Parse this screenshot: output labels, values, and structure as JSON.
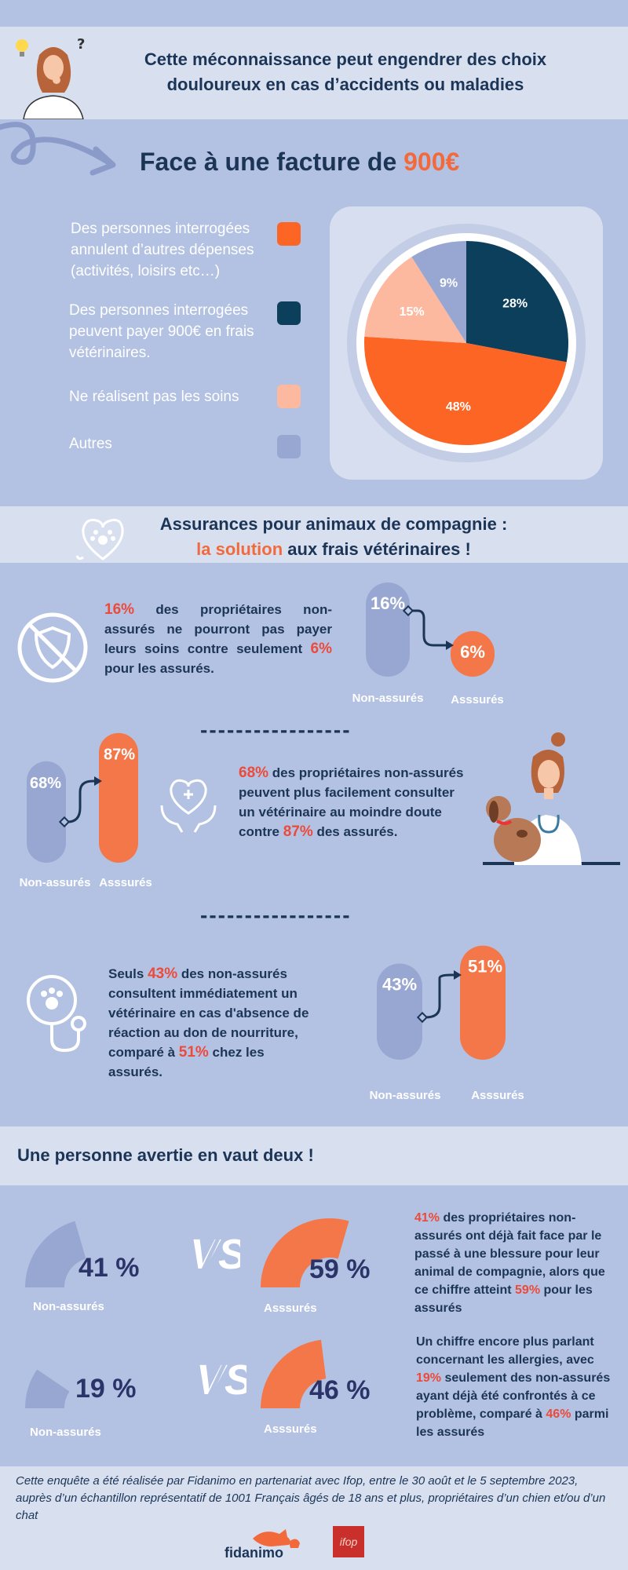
{
  "header": {
    "line1": "Cette méconnaissance peut engendrer des choix",
    "line2": "douloureux en cas d’accidents ou maladies"
  },
  "invoice": {
    "title_prefix": "Face à une facture de ",
    "title_amount": "900€"
  },
  "legend": [
    {
      "label": "Des personnes interrogées annulent d’autres dépenses (activités, loisirs etc…)",
      "color": "#fd6524"
    },
    {
      "label": "Des personnes interrogées peuvent payer 900€ en frais vétérinaires.",
      "color": "#0c3f5c"
    },
    {
      "label": "Ne réalisent pas les soins",
      "color": "#fdb9a0"
    },
    {
      "label": "Autres",
      "color": "#98a7d1"
    }
  ],
  "chart_data": {
    "type": "pie",
    "categories": [
      "Des personnes interrogées annulent d’autres dépenses (activités, loisirs etc…)",
      "Des personnes interrogées peuvent payer 900€ en frais vétérinaires.",
      "Ne réalisent pas les soins",
      "Autres"
    ],
    "values": [
      48,
      28,
      15,
      9
    ],
    "data_labels": [
      "48%",
      "28%",
      "15%",
      "9%"
    ],
    "colors": [
      "#fd6524",
      "#0c3f5c",
      "#fdb9a0",
      "#98a7d1"
    ]
  },
  "insurance": {
    "title_line1": "Assurances pour animaux de compagnie :",
    "title_highlight": "la solution",
    "title_rest": " aux frais vétérinaires !"
  },
  "stat1": {
    "pct_a": "16%",
    "text_a": " des propriétaires non- assurés ne pourront pas payer leurs soins contre seulement ",
    "pct_b": "6%",
    "text_b": "  pour les assurés.",
    "bar_a_value": 16,
    "bar_b_value": 6,
    "bar_a_label": "16%",
    "bar_b_label": "6%",
    "cat_a": "Non-assurés",
    "cat_b": "Asssurés"
  },
  "divider": "-----------------",
  "stat2": {
    "pct_a": "68%",
    "text_a": "  des propriétaires non-assurés peuvent plus facilement consulter un  vétérinaire au moindre doute contre ",
    "pct_b": "87%",
    "text_b": "  des assurés.",
    "bar_a_value": 68,
    "bar_b_value": 87,
    "bar_a_label": "68%",
    "bar_b_label": "87%",
    "cat_a": "Non-assurés",
    "cat_b": "Asssurés"
  },
  "stat3": {
    "text_pre": "Seuls ",
    "pct_a": "43%",
    "text_a": " des non-assurés consultent immédiatement un vétérinaire en cas d'absence de réaction au don de nourriture, comparé à  ",
    "pct_b": "51%",
    "text_b": "  chez les assurés.",
    "bar_a_value": 43,
    "bar_b_value": 51,
    "bar_a_label": "43%",
    "bar_b_label": "51%",
    "cat_a": "Non-assurés",
    "cat_b": "Asssurés"
  },
  "warning": {
    "title": "Une personne avertie en vaut deux !"
  },
  "compare1": {
    "left_pct": "41 %",
    "left_value": 41,
    "left_label": "Non-assurés",
    "vs": "VS",
    "right_pct": "59 %",
    "right_value": 59,
    "right_label": "Asssurés",
    "text_pct_a": "41%",
    "text_a": " des propriétaires non-assurés ont déjà fait face par le passé à une blessure pour leur animal de compagnie, alors que ce chiffre atteint ",
    "text_pct_b": "59%",
    "text_b": " pour les assurés"
  },
  "compare2": {
    "left_pct": "19 %",
    "left_value": 19,
    "left_label": "Non-assurés",
    "vs": "VS",
    "right_pct": "46 %",
    "right_value": 46,
    "right_label": "Asssurés",
    "text_pre": "Un chiffre encore plus parlant concernant les allergies, avec ",
    "text_pct_a": "19%",
    "text_a": " seulement des non-assurés ayant déjà été confrontés à ce problème, comparé à ",
    "text_pct_b": "46%",
    "text_b": " parmi les assurés"
  },
  "footer": {
    "text": "Cette enquête a été réalisée par Fidanimo en partenariat avec Ifop, entre le 30 août et le 5 septembre 2023, auprès d’un échantillon représentatif de 1001 Français âgés de 18 ans et plus, propriétaires d’un chien et/ou d’un chat",
    "logo1": "fidanimo",
    "logo2": "ifop"
  }
}
